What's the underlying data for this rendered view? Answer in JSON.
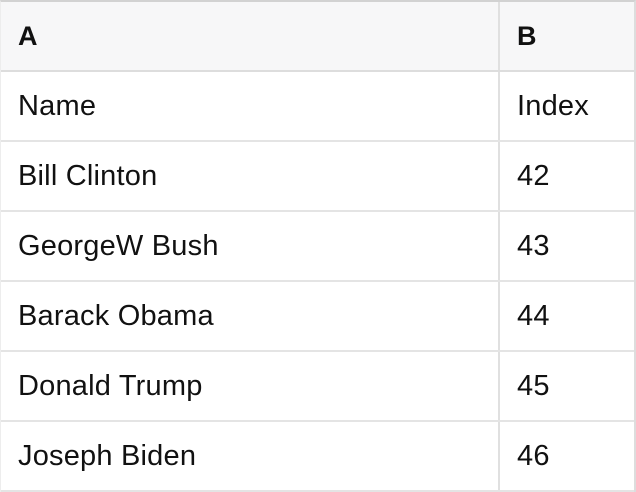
{
  "colors": {
    "header_background": "#f7f7f8",
    "grid_border": "#e0e0e0",
    "outer_top_border": "#d2d2d2",
    "text": "#111111"
  },
  "table": {
    "columns": [
      {
        "label": "A"
      },
      {
        "label": "B"
      }
    ],
    "rows": [
      [
        "Name",
        "Index"
      ],
      [
        "Bill Clinton",
        "42"
      ],
      [
        "GeorgeW Bush",
        "43"
      ],
      [
        "Barack Obama",
        "44"
      ],
      [
        "Donald Trump",
        "45"
      ],
      [
        "Joseph Biden",
        "46"
      ]
    ]
  }
}
